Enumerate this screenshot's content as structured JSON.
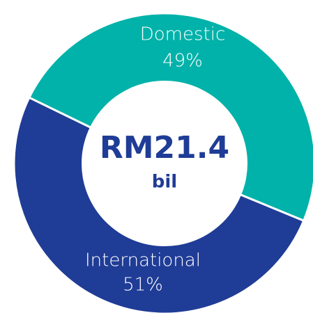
{
  "chart_data": {
    "type": "pie",
    "categories": [
      "Domestic",
      "International"
    ],
    "values": [
      49,
      51
    ],
    "value_labels": [
      "49%",
      "51%"
    ],
    "colors": [
      "#00b2a9",
      "#1f3c96"
    ],
    "annotations": [
      "RM21.4",
      "bil"
    ]
  }
}
